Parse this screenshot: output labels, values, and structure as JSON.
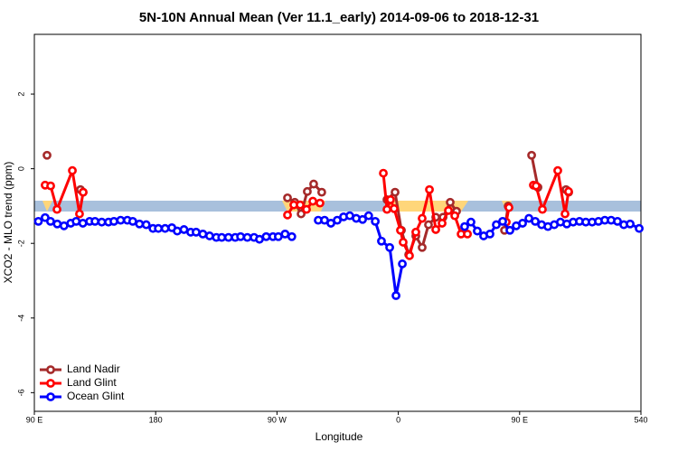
{
  "chart_data": {
    "type": "line",
    "title": "5N-10N Annual Mean (Ver 11.1_early)   2014-09-06 to 2018-12-31",
    "x_label": "Longitude",
    "y_label": "XCO2 - MLO trend (ppm)",
    "xlim": [
      90,
      540
    ],
    "ylim": [
      -6.5,
      3.6
    ],
    "xticks": [
      {
        "value": 90,
        "label": "90 E"
      },
      180,
      {
        "value": 270,
        "label": "90 W"
      },
      {
        "value": 360,
        "label": "0"
      },
      {
        "value": 450,
        "label": "90 E"
      },
      540
    ],
    "yticks": [
      -6,
      -4,
      -2,
      0,
      2
    ],
    "grid": false,
    "legend": "bottom-left",
    "series": [
      {
        "name": "Land Nadir",
        "color": "#a52a2a",
        "x": [
          99.4,
          null,
          124.2,
          126.2,
          null,
          277.8,
          283.2,
          287.9,
          292.5,
          297.2,
          303.2,
          null,
          351.6,
          357.6,
          362.3,
          367.7,
          373.0,
          377.7,
          382.4,
          387.8,
          393.2,
          398.5,
          403.2,
          null,
          438.8,
          441.5,
          null,
          458.9,
          463.6,
          null,
          484.4,
          486.4
        ],
        "values": [
          0.36,
          null,
          -0.56,
          -0.63,
          null,
          -0.78,
          -0.9,
          -1.21,
          -0.61,
          -0.41,
          -0.63,
          null,
          -0.83,
          -0.63,
          -1.65,
          -2.3,
          -1.8,
          -2.11,
          -1.5,
          -1.3,
          -1.3,
          -0.9,
          -1.14,
          null,
          -1.65,
          -1.0,
          null,
          0.36,
          -0.5,
          null,
          -0.56,
          -0.63
        ]
      },
      {
        "name": "Land Glint",
        "color": "#ff0000",
        "x": [
          98.0,
          102.1,
          106.8,
          118.2,
          123.5,
          126.2,
          null,
          277.8,
          282.5,
          287.2,
          291.9,
          296.6,
          301.9,
          null,
          348.9,
          351.6,
          354.2,
          356.9,
          361.6,
          363.6,
          368.3,
          373.0,
          377.7,
          383.1,
          387.8,
          392.5,
          397.2,
          401.9,
          406.6,
          411.3,
          null,
          440.1,
          442.1,
          null,
          460.2,
          462.2,
          466.9,
          478.3,
          483.7,
          486.3
        ],
        "values": [
          -0.44,
          -0.46,
          -1.09,
          -0.05,
          -1.21,
          -0.63,
          null,
          -1.24,
          -0.97,
          -0.97,
          -1.09,
          -0.87,
          -0.92,
          null,
          -0.12,
          -1.09,
          -0.83,
          -1.07,
          -1.65,
          -1.97,
          -2.33,
          -1.7,
          -1.33,
          -0.56,
          -1.63,
          -1.46,
          -1.12,
          -1.26,
          -1.75,
          -1.75,
          null,
          -1.43,
          -1.04,
          null,
          -0.44,
          -0.46,
          -1.09,
          -0.05,
          -1.21,
          -0.61
        ]
      },
      {
        "name": "Ocean Glint",
        "color": "#0000ff",
        "x": [
          93,
          98,
          102,
          107,
          112,
          117,
          121,
          126,
          131,
          135,
          140,
          145,
          149,
          154,
          159,
          163,
          168,
          173,
          178,
          182,
          187,
          192,
          196,
          201,
          206,
          210,
          215,
          220,
          225,
          229,
          234,
          239,
          243,
          248,
          253,
          257,
          262,
          267,
          271,
          276,
          281,
          null,
          300.6,
          305.3,
          310.0,
          314.7,
          319.4,
          324.0,
          328.8,
          333.5,
          338.0,
          342.9,
          347.5,
          353.6,
          358.3,
          363.0,
          null,
          409.2,
          413.9,
          418.6,
          423.3,
          428.0,
          432.7,
          437.4,
          442.8,
          447.5,
          452.2,
          456.9,
          461.6,
          466.3,
          471.0,
          475.7,
          480.3,
          485.0,
          489.7,
          494.4,
          499.1,
          503.8,
          508.5,
          513.2,
          517.9,
          522.6,
          527.3,
          532.0,
          538.7
        ],
        "values": [
          -1.41,
          -1.31,
          -1.41,
          -1.48,
          -1.53,
          -1.46,
          -1.41,
          -1.46,
          -1.41,
          -1.41,
          -1.43,
          -1.43,
          -1.41,
          -1.38,
          -1.38,
          -1.41,
          -1.48,
          -1.5,
          -1.6,
          -1.6,
          -1.6,
          -1.58,
          -1.67,
          -1.63,
          -1.7,
          -1.7,
          -1.75,
          -1.8,
          -1.84,
          -1.84,
          -1.84,
          -1.84,
          -1.82,
          -1.84,
          -1.84,
          -1.89,
          -1.82,
          -1.82,
          -1.82,
          -1.75,
          -1.82,
          null,
          -1.38,
          -1.38,
          -1.46,
          -1.38,
          -1.29,
          -1.26,
          -1.33,
          -1.36,
          -1.26,
          -1.41,
          -1.94,
          -2.11,
          -3.4,
          -2.55,
          null,
          -1.55,
          -1.43,
          -1.67,
          -1.8,
          -1.75,
          -1.5,
          -1.41,
          -1.65,
          -1.53,
          -1.46,
          -1.33,
          -1.41,
          -1.5,
          -1.55,
          -1.5,
          -1.43,
          -1.48,
          -1.43,
          -1.41,
          -1.43,
          -1.43,
          -1.41,
          -1.38,
          -1.38,
          -1.41,
          -1.5,
          -1.48,
          -1.6
        ]
      }
    ]
  }
}
